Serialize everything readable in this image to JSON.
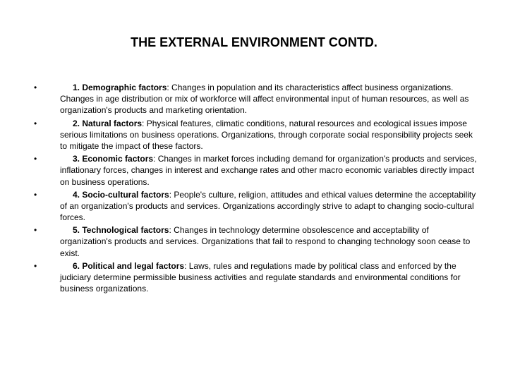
{
  "title": "THE EXTERNAL ENVIRONMENT CONTD.",
  "items": [
    {
      "bullet": "•",
      "number": "1. ",
      "label": "Demographic factors",
      "body": ": Changes in population and its characteristics affect business organizations. Changes in age distribution or mix of workforce will affect environmental input of human resources, as well as organization's products and marketing orientation."
    },
    {
      "bullet": "•",
      "number": "2. ",
      "label": "Natural factors",
      "body": ": Physical features, climatic conditions, natural resources and ecological issues impose serious limitations on business operations. Organizations, through corporate social responsibility projects seek to mitigate the impact of these factors."
    },
    {
      "bullet": "•",
      "number": "3. ",
      "label": "Economic factors",
      "body": ": Changes in market forces including demand for organization's products and services, inflationary forces, changes in interest and exchange rates and other macro economic variables directly impact on business operations."
    },
    {
      "bullet": "•",
      "number": "4. ",
      "label": "Socio-cultural factors",
      "body": ": People's culture, religion, attitudes and ethical values determine the acceptability of an organization's products and services. Organizations accordingly strive to adapt to changing socio-cultural forces."
    },
    {
      "bullet": "•",
      "number": "5. ",
      "label": "Technological factors",
      "body": ": Changes in technology determine obsolescence and acceptability of organization's products and services. Organizations that fail to respond to changing technology soon cease to exist."
    },
    {
      "bullet": "•",
      "number": "6. ",
      "label": "Political and legal factors",
      "body": ": Laws, rules and regulations made by political class and enforced by the judiciary determine permissible business activities and regulate standards and environmental conditions for business organizations."
    }
  ]
}
